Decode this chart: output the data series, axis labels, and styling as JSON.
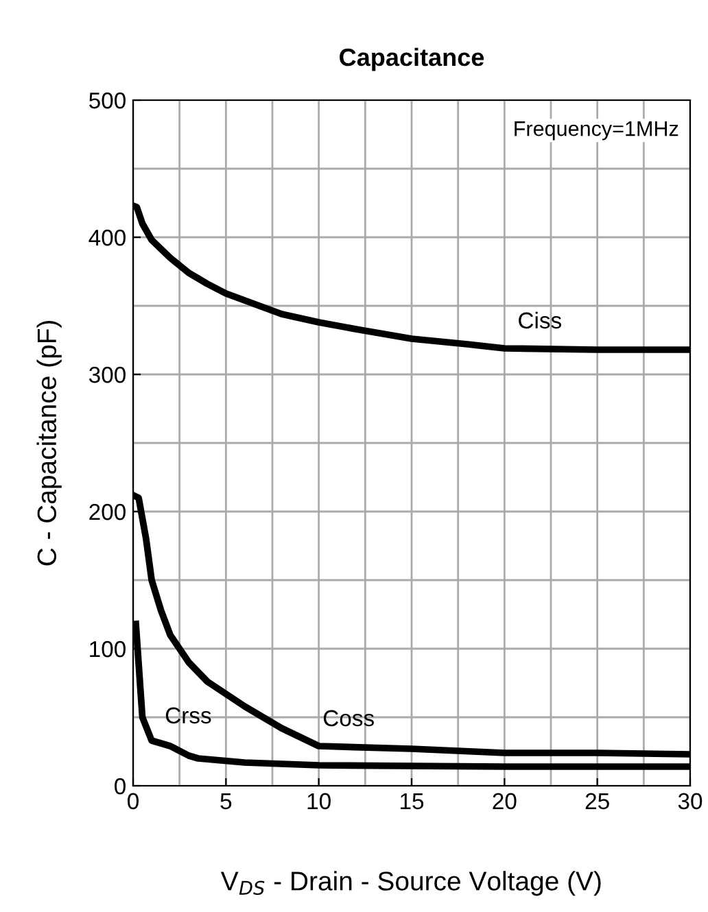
{
  "chart_data": {
    "type": "line",
    "title": "Capacitance",
    "xlabel": "V$_{DS}$ - Drain - Source Voltage (V)",
    "ylabel": "C - Capacitance (pF)",
    "xlim": [
      0,
      30
    ],
    "xticks": [
      0,
      5,
      10,
      15,
      20,
      25,
      30
    ],
    "ylim": [
      0,
      500
    ],
    "yticks": [
      0,
      100,
      200,
      300,
      400,
      500
    ],
    "grid": true,
    "legend": false,
    "marker": "none",
    "line_style": "solid",
    "series": [
      {
        "color": "#000000",
        "x": [
          0,
          0.2,
          0.5,
          1,
          2,
          3,
          4,
          5,
          6,
          8,
          10,
          12,
          15,
          18,
          20,
          25,
          30
        ],
        "values": [
          423,
          422,
          410,
          398,
          385,
          374,
          366,
          359,
          354,
          344,
          338,
          333,
          326,
          322,
          319,
          318,
          318
        ]
      },
      {
        "color": "#000000",
        "x": [
          0,
          0.3,
          0.7,
          1,
          1.5,
          2,
          3,
          4,
          5,
          6,
          8,
          10,
          15,
          20,
          25,
          30
        ],
        "values": [
          212,
          210,
          180,
          150,
          128,
          110,
          90,
          76,
          67,
          58,
          42,
          29,
          27,
          24,
          24,
          23
        ]
      },
      {
        "color": "#000000",
        "x": [
          0.15,
          0.5,
          1,
          2,
          3,
          3.5,
          6,
          10,
          20,
          30
        ],
        "values": [
          118,
          50,
          33,
          29,
          22,
          20,
          17,
          15,
          14,
          14
        ]
      }
    ],
    "annotations": [
      {
        "text": "Ciss",
        "x": 20.5,
        "y": 319
      },
      {
        "text": "Coss",
        "x": 10,
        "y": 29
      },
      {
        "text": "Crss",
        "x": 1.5,
        "y": 31
      },
      "Frequency=1MHz"
    ]
  }
}
